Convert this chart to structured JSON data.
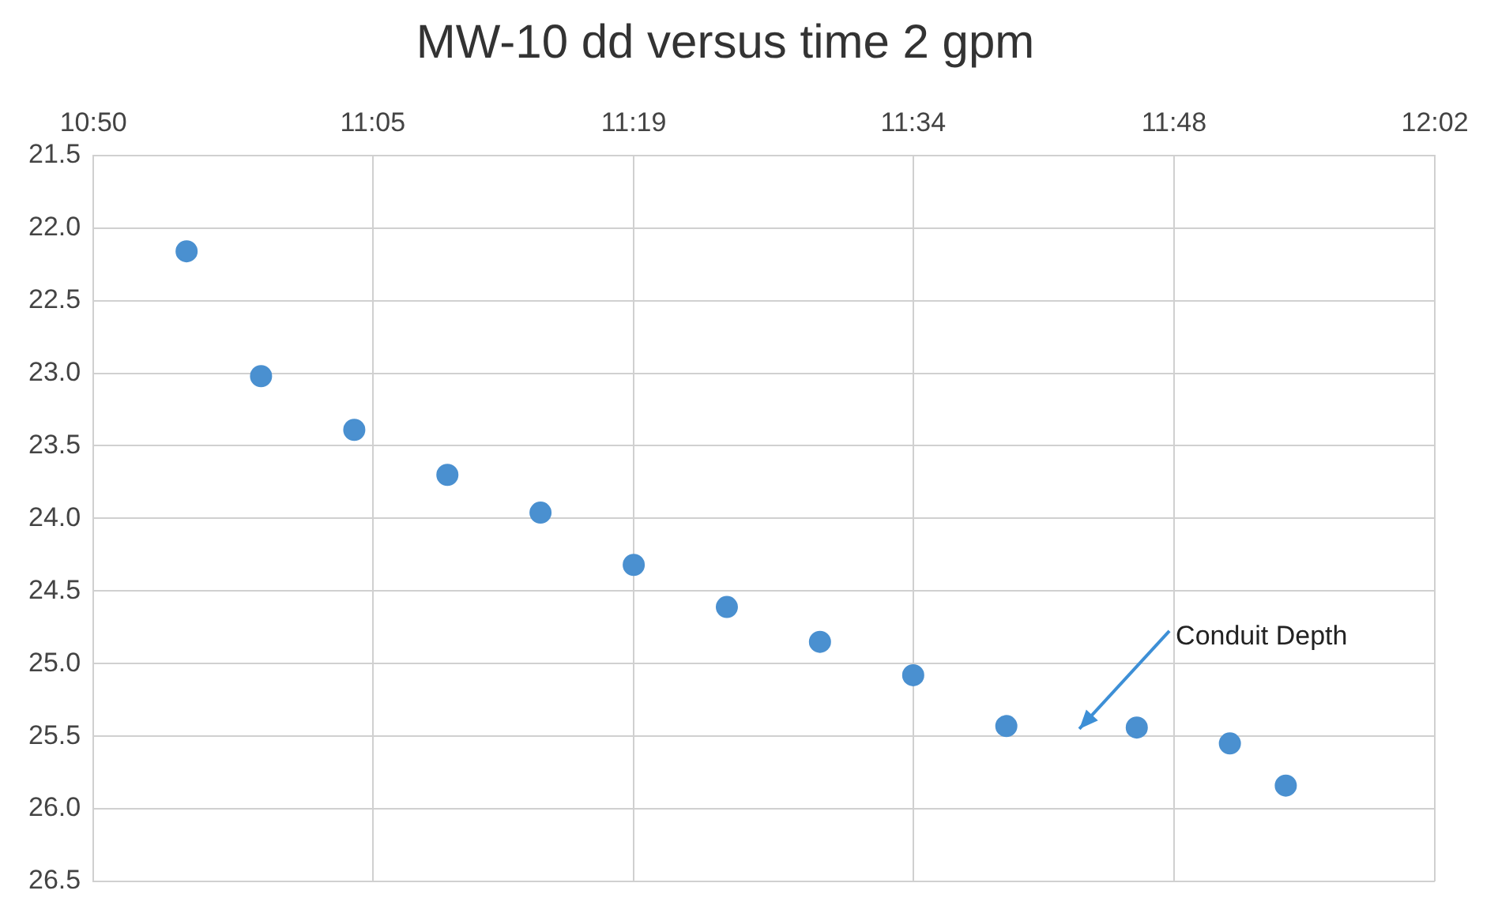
{
  "chart_data": {
    "type": "scatter",
    "title": "MW-10 dd versus time 2 gpm",
    "x": [
      10.9167,
      10.9833,
      11.0667,
      11.15,
      11.2333,
      11.3167,
      11.4,
      11.4833,
      11.5667,
      11.65,
      11.7667,
      11.85,
      11.9
    ],
    "series": [
      {
        "color": "#4a90d0",
        "values": [
          22.16,
          23.02,
          23.39,
          23.7,
          23.96,
          24.32,
          24.61,
          24.85,
          25.08,
          25.43,
          25.44,
          25.55,
          25.84
        ]
      }
    ],
    "xlim": [
      10.8333,
      12.0333
    ],
    "xticks": [
      {
        "value": 10.8333,
        "label": "10:50"
      },
      {
        "value": 11.0833,
        "label": "11:05"
      },
      {
        "value": 11.3167,
        "label": "11:19"
      },
      {
        "value": 11.5667,
        "label": "11:34"
      },
      {
        "value": 11.8,
        "label": "11:48"
      },
      {
        "value": 12.0333,
        "label": "12:02"
      }
    ],
    "ylim": [
      26.5,
      21.5
    ],
    "yticks": [
      21.5,
      {
        "value": 22,
        "label": "22.0"
      },
      22.5,
      {
        "value": 23,
        "label": "23.0"
      },
      23.5,
      {
        "value": 24,
        "label": "24.0"
      },
      24.5,
      {
        "value": 25,
        "label": "25.0"
      },
      25.5,
      {
        "value": 26,
        "label": "26.0"
      },
      26.5
    ],
    "annotations": [
      "Conduit Depth"
    ],
    "grid": true,
    "legend": false,
    "marker": "circle"
  }
}
